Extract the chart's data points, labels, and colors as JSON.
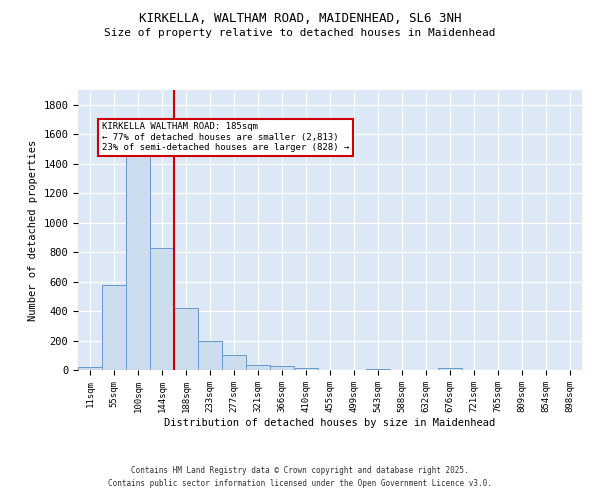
{
  "title1": "KIRKELLA, WALTHAM ROAD, MAIDENHEAD, SL6 3NH",
  "title2": "Size of property relative to detached houses in Maidenhead",
  "xlabel": "Distribution of detached houses by size in Maidenhead",
  "ylabel": "Number of detached properties",
  "bar_color": "#ccdded",
  "bar_edge_color": "#6699cc",
  "categories": [
    "11sqm",
    "55sqm",
    "100sqm",
    "144sqm",
    "188sqm",
    "233sqm",
    "277sqm",
    "321sqm",
    "366sqm",
    "410sqm",
    "455sqm",
    "499sqm",
    "543sqm",
    "588sqm",
    "632sqm",
    "676sqm",
    "721sqm",
    "765sqm",
    "809sqm",
    "854sqm",
    "898sqm"
  ],
  "values": [
    20,
    580,
    1470,
    830,
    420,
    200,
    100,
    35,
    25,
    15,
    0,
    0,
    10,
    0,
    0,
    15,
    0,
    0,
    0,
    0,
    0
  ],
  "vline_x": 4,
  "vline_color": "#cc0000",
  "annotation_title": "KIRKELLA WALTHAM ROAD: 185sqm",
  "annotation_line1": "← 77% of detached houses are smaller (2,813)",
  "annotation_line2": "23% of semi-detached houses are larger (828) →",
  "annotation_box_color": "#ffffff",
  "annotation_box_edge": "#cc0000",
  "ylim": [
    0,
    1900
  ],
  "yticks": [
    0,
    200,
    400,
    600,
    800,
    1000,
    1200,
    1400,
    1600,
    1800
  ],
  "background_color": "#dce8f5",
  "grid_color": "#ffffff",
  "footer1": "Contains HM Land Registry data © Crown copyright and database right 2025.",
  "footer2": "Contains public sector information licensed under the Open Government Licence v3.0."
}
